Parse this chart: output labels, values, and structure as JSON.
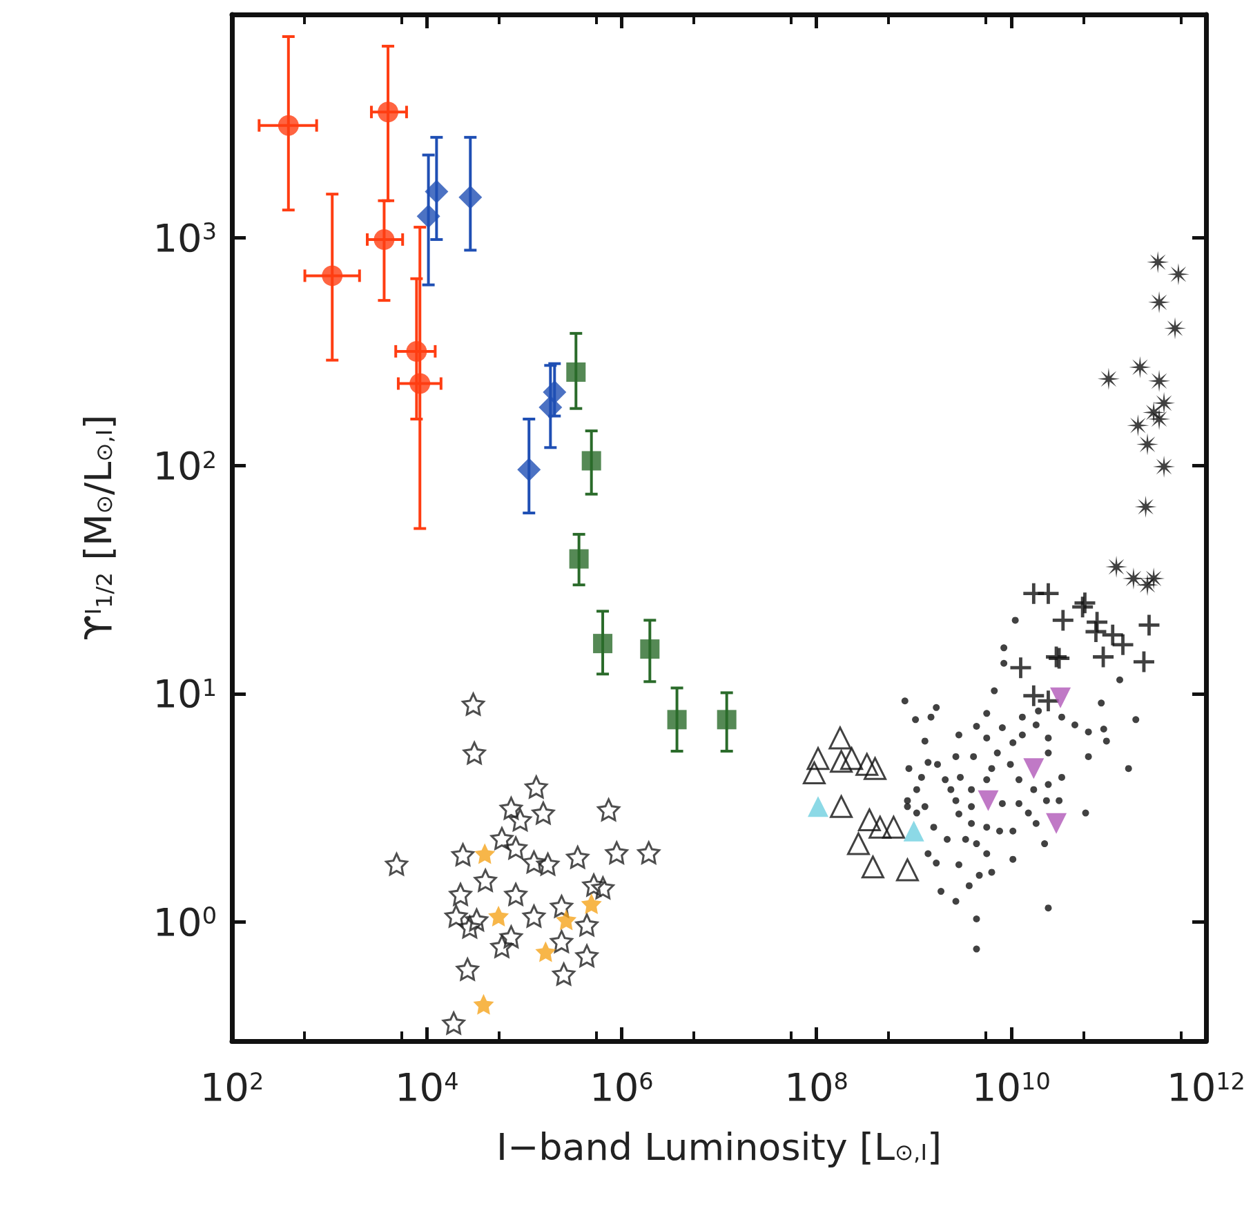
{
  "chart_data": {
    "type": "scatter",
    "xlabel": "I−band Luminosity [L$_{⊙,I}$]",
    "ylabel": "ϒ$^{I}$$_{1/2}$ [M$_{⊙}$/L$_{⊙,I}$]",
    "log": "xy",
    "grid": false,
    "xlim": [
      100,
      1000000000000.0
    ],
    "ylim": [
      0.3,
      9500
    ],
    "xticks": [
      {
        "value": 100,
        "label": "10$^{2}$"
      },
      {
        "value": 10000,
        "label": "10$^{4}$"
      },
      {
        "value": 1000000,
        "label": "10$^{6}$"
      },
      {
        "value": 100000000,
        "label": "10$^{8}$"
      },
      {
        "value": 10000000000,
        "label": "10$^{10}$"
      },
      {
        "value": 1000000000000,
        "label": "10$^{12}$"
      }
    ],
    "yticks": [
      {
        "value": 1,
        "label": "10$^{0}$"
      },
      {
        "value": 10,
        "label": "10$^{1}$"
      },
      {
        "value": 100,
        "label": "10$^{2}$"
      },
      {
        "value": 1000,
        "label": "10$^{3}$"
      }
    ],
    "series": [
      {
        "marker": "circle",
        "color": "#ff3d12",
        "x": [
          380,
          4000,
          1070,
          3650,
          7850,
          8500
        ],
        "values": [
          3100,
          3550,
          680,
          980,
          317,
          229
        ],
        "errors": [
          [
            1320,
            7600
          ],
          [
            1450,
            6900
          ],
          [
            290,
            1550
          ],
          [
            530,
            1450
          ],
          [
            160,
            660
          ],
          [
            53,
            1110
          ]
        ],
        "xerrors": [
          [
            190,
            740
          ],
          [
            2700,
            6200
          ],
          [
            560,
            2040
          ],
          [
            2450,
            5650
          ],
          [
            4800,
            12200
          ],
          [
            5100,
            14000
          ]
        ]
      },
      {
        "marker": "diamond",
        "color": "#1f4fb4",
        "x": [
          10400,
          12600,
          28000,
          112000,
          186000,
          205000
        ],
        "values": [
          1240,
          1590,
          1500,
          96,
          180,
          210
        ],
        "errors": [
          [
            620,
            2300
          ],
          [
            980,
            2750
          ],
          [
            880,
            2750
          ],
          [
            62,
            160
          ],
          [
            120,
            275
          ],
          [
            165,
            280
          ]
        ]
      },
      {
        "marker": "square",
        "color": "#2a6b2a",
        "x": [
          340000,
          490000,
          365000,
          640000,
          1950000,
          3700000,
          12000000
        ],
        "values": [
          257,
          105,
          39,
          16.6,
          15.7,
          7.7,
          7.7
        ],
        "errors": [
          [
            178,
            380
          ],
          [
            75,
            142
          ],
          [
            30,
            50
          ],
          [
            12.2,
            23
          ],
          [
            11.3,
            21
          ],
          [
            5.6,
            10.6
          ],
          [
            5.6,
            10.1
          ]
        ]
      },
      {
        "marker": "star-open",
        "color": "#222222",
        "x": [
          30000,
          30800,
          133000,
          73500,
          157000,
          736000,
          4900,
          23500,
          59000,
          82000,
          126000,
          175000,
          354000,
          890000,
          1900000,
          40000,
          22200,
          518000,
          82000,
          20000,
          32500,
          126000,
          59000,
          242000,
          440000,
          440000,
          255000,
          26200,
          18900,
          91000,
          27600,
          73500,
          643000,
          242000
        ],
        "values": [
          9.0,
          5.5,
          3.9,
          3.15,
          3.0,
          3.1,
          1.79,
          1.97,
          2.32,
          2.11,
          1.83,
          1.79,
          1.92,
          2.01,
          2.01,
          1.52,
          1.32,
          1.45,
          1.32,
          1.06,
          1.02,
          1.06,
          0.78,
          1.17,
          0.97,
          0.71,
          0.59,
          0.62,
          0.36,
          2.8,
          0.95,
          0.86,
          1.41,
          0.82
        ]
      },
      {
        "marker": "star",
        "color": "#f5a41c",
        "x": [
          39400,
          54500,
          270000,
          490000,
          166000,
          38300
        ],
        "values": [
          1.99,
          1.06,
          1.02,
          1.2,
          0.74,
          0.435
        ]
      },
      {
        "marker": "triangle-open",
        "color": "#111111",
        "x": [
          95000000,
          175000000,
          104000000,
          180000000,
          230000000,
          330000000,
          400000000,
          180000000,
          350000000,
          450000000,
          620000000,
          270000000,
          380000000,
          860000000
        ],
        "values": [
          4.5,
          6.4,
          5.2,
          5.05,
          5.2,
          4.9,
          4.7,
          3.2,
          2.8,
          2.6,
          2.6,
          2.2,
          1.74,
          1.69
        ]
      },
      {
        "marker": "triangle",
        "color": "#6fd0e0",
        "x": [
          104000000,
          1000000000
        ],
        "values": [
          3.2,
          2.5
        ]
      },
      {
        "marker": "dot",
        "color": "#111111",
        "x": [
          810000000.0,
          1700000000.0,
          1040000000.0,
          1500000000.0,
          1300000000.0,
          2900000000.0,
          4400000000.0,
          5600000000.0,
          6700000000.0,
          11000000000.0,
          8400000000.0,
          8400000000.0,
          890000000.0,
          1400000000.0,
          1750000000.0,
          1200000000.0,
          2700000000.0,
          4100000000.0,
          2100000000.0,
          3000000000.0,
          1070000000.0,
          860000000.0,
          860000000.0,
          1300000000.0,
          1070000000.0,
          2900000000.0,
          2400000000.0,
          3900000000.0,
          5600000000.0,
          8100000000.0,
          7200000000.0,
          10400000000.0,
          13000000000.0,
          18000000000.0,
          24000000000.0,
          33000000000.0,
          45000000000.0,
          62000000000.0,
          84000000000.0,
          89000000000.0,
          95000000000.0,
          6300000000.0,
          9800000000.0,
          12000000000.0,
          17000000000.0,
          24000000000.0,
          33000000000.0,
          31000000000.0,
          23000000000.0,
          15000000000.0,
          18000000000.0,
          22000000000.0,
          58000000000.0,
          62000000000.0,
          10400000000.0,
          6300000000.0,
          4700000000.0,
          3700000000.0,
          1900000000.0,
          2700000000.0,
          4400000000.0,
          4400000000.0,
          24000000000.0,
          1400000000.0,
          1700000000.0,
          2900000000.0,
          2200000000.0,
          3400000000.0,
          4400000000.0,
          5600000000.0,
          7600000000.0,
          10400000000.0,
          3900000000.0,
          5600000000.0,
          12000000000.0,
          8100000000.0,
          3900000000.0,
          5600000000.0,
          2700000000.0,
          1600000000.0,
          13000000000.0,
          19000000000.0,
          24000000000.0,
          190000000000.0,
          160000000000.0,
          130000000000.0
        ],
        "values": [
          9.3,
          8.7,
          7.7,
          7.9,
          6.2,
          6.6,
          7.2,
          8.2,
          10.3,
          21,
          15.9,
          13.6,
          4.7,
          5.0,
          4.9,
          4.3,
          5.3,
          5.3,
          4.2,
          4.3,
          3.8,
          3.4,
          3.2,
          3.2,
          3.0,
          2.97,
          3.8,
          3.8,
          6.4,
          7.1,
          5.5,
          6.1,
          6.6,
          7.3,
          6.4,
          7.9,
          7.3,
          6.8,
          9.1,
          7.0,
          6.2,
          4.7,
          4.9,
          4.2,
          3.8,
          4.0,
          4.3,
          3.4,
          3.4,
          3.0,
          2.7,
          2.2,
          3.0,
          5.3,
          1.88,
          1.65,
          1.6,
          1.44,
          1.36,
          1.23,
          1.03,
          0.76,
          1.15,
          1.99,
          1.81,
          1.78,
          2.3,
          2.3,
          2.2,
          1.99,
          2.5,
          2.5,
          2.7,
          2.6,
          3.3,
          3.3,
          3.2,
          4.2,
          3.4,
          2.6,
          7.9,
          8.4,
          5.5,
          7.7,
          4.7,
          11.5
        ]
      },
      {
        "marker": "cross",
        "color": "#111111",
        "x": [
          17000000000.0,
          24000000000.0,
          12500000000.0,
          33000000000.0,
          54000000000.0,
          17000000000.0,
          31000000000.0,
          74000000000.0,
          24000000000.0,
          57000000000.0,
          34000000000.0,
          260000000000.0,
          230000000000.0,
          76000000000.0,
          110000000000.0,
          140000000000.0,
          88000000000.0,
          29000000000.0
        ],
        "values": [
          27.5,
          27.5,
          13,
          null,
          24,
          9.8,
          14.3,
          18.7,
          9.3,
          25,
          21,
          20,
          13.8,
          20.6,
          18.1,
          16.4,
          14.5,
          14.5
        ]
      },
      {
        "marker": "triangle-down",
        "color": "#b058b8",
        "x": [
          32000000000.0,
          17000000000.0,
          5800000000.0,
          29000000000.0
        ],
        "values": [
          9.6,
          4.7,
          3.4,
          2.7
        ]
      },
      {
        "marker": "star-8",
        "color": "#111111",
        "x": [
          320000000000.0,
          520000000000.0,
          330000000000.0,
          480000000000.0,
          100000000000.0,
          210000000000.0,
          330000000000.0,
          370000000000.0,
          330000000000.0,
          200000000000.0,
          250000000000.0,
          370000000000.0,
          240000000000.0,
          120000000000.0,
          250000000000.0,
          290000000000.0,
          180000000000.0,
          290000000000.0
        ],
        "values": [
          780,
          690,
          520,
          400,
          240,
          270,
          235,
          188,
          160,
          150,
          124,
          99,
          66,
          36,
          30,
          32,
          32,
          171
        ]
      }
    ]
  }
}
